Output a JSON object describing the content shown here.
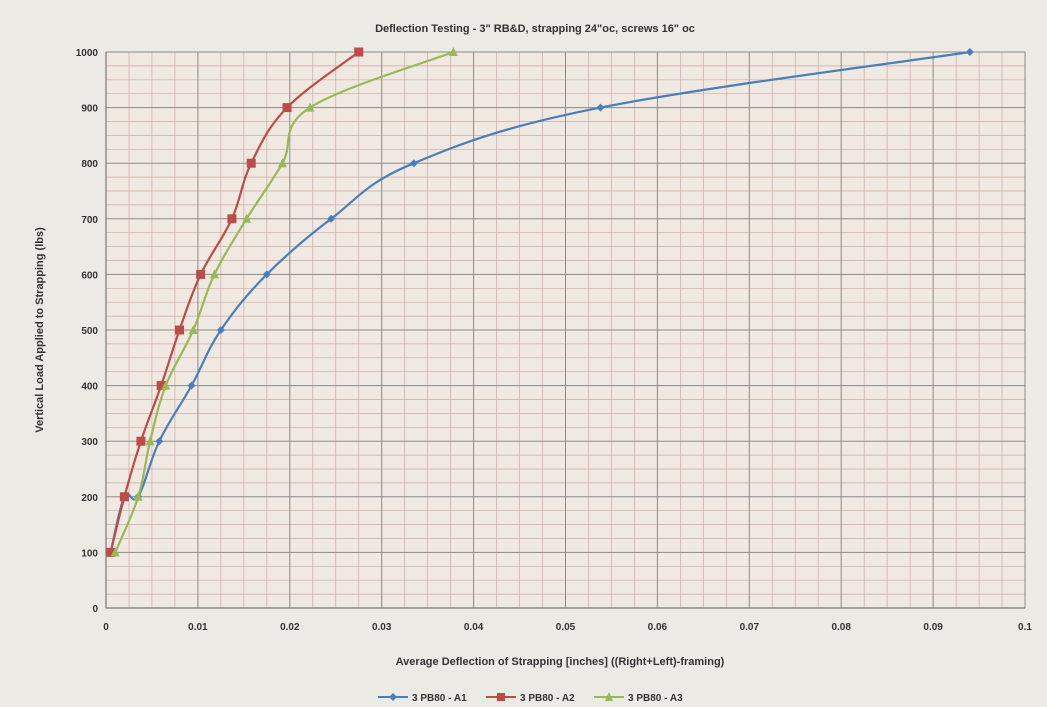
{
  "chart_data": {
    "type": "line",
    "title": "Deflection Testing - 3\" RB&D, strapping 24\"oc, screws 16\" oc",
    "xlabel": "Average Deflection of Strapping [inches] ((Right+Left)-framing)",
    "ylabel": "Vertical Load Applied to Strapping (lbs)",
    "xlim": [
      0,
      0.1
    ],
    "ylim": [
      0,
      1000
    ],
    "xticks": [
      0,
      0.01,
      0.02,
      0.03,
      0.04,
      0.05,
      0.06,
      0.07,
      0.08,
      0.09,
      0.1
    ],
    "xtick_labels": [
      "0",
      "0.01",
      "0.02",
      "0.03",
      "0.04",
      "0.05",
      "0.06",
      "0.07",
      "0.08",
      "0.09",
      "0.1"
    ],
    "yticks": [
      0,
      100,
      200,
      300,
      400,
      500,
      600,
      700,
      800,
      900,
      1000
    ],
    "ytick_labels": [
      "0",
      "100",
      "200",
      "300",
      "400",
      "500",
      "600",
      "700",
      "800",
      "900",
      "1000"
    ],
    "grid": true,
    "legend_position": "bottom",
    "series": [
      {
        "name": "3 PB80 - A1",
        "color": "#4a7ebb",
        "marker": "diamond",
        "x": [
          0.0005,
          0.002,
          0.0035,
          0.0058,
          0.0093,
          0.0125,
          0.0175,
          0.0245,
          0.0335,
          0.0538,
          0.094
        ],
        "y": [
          100,
          200,
          200,
          300,
          400,
          500,
          600,
          700,
          800,
          900,
          1000
        ]
      },
      {
        "name": "3 PB80 - A2",
        "color": "#be4b48",
        "marker": "square",
        "x": [
          0.0005,
          0.002,
          0.0038,
          0.006,
          0.008,
          0.0103,
          0.0137,
          0.0158,
          0.0197,
          0.0275
        ],
        "y": [
          100,
          200,
          300,
          400,
          500,
          600,
          700,
          800,
          900,
          1000
        ]
      },
      {
        "name": "3 PB80 - A3",
        "color": "#98b954",
        "marker": "triangle",
        "x": [
          0.001,
          0.0035,
          0.0048,
          0.0065,
          0.0095,
          0.0118,
          0.0153,
          0.0192,
          0.0222,
          0.0378
        ],
        "y": [
          100,
          200,
          300,
          400,
          500,
          600,
          700,
          800,
          900,
          1000
        ]
      }
    ]
  }
}
